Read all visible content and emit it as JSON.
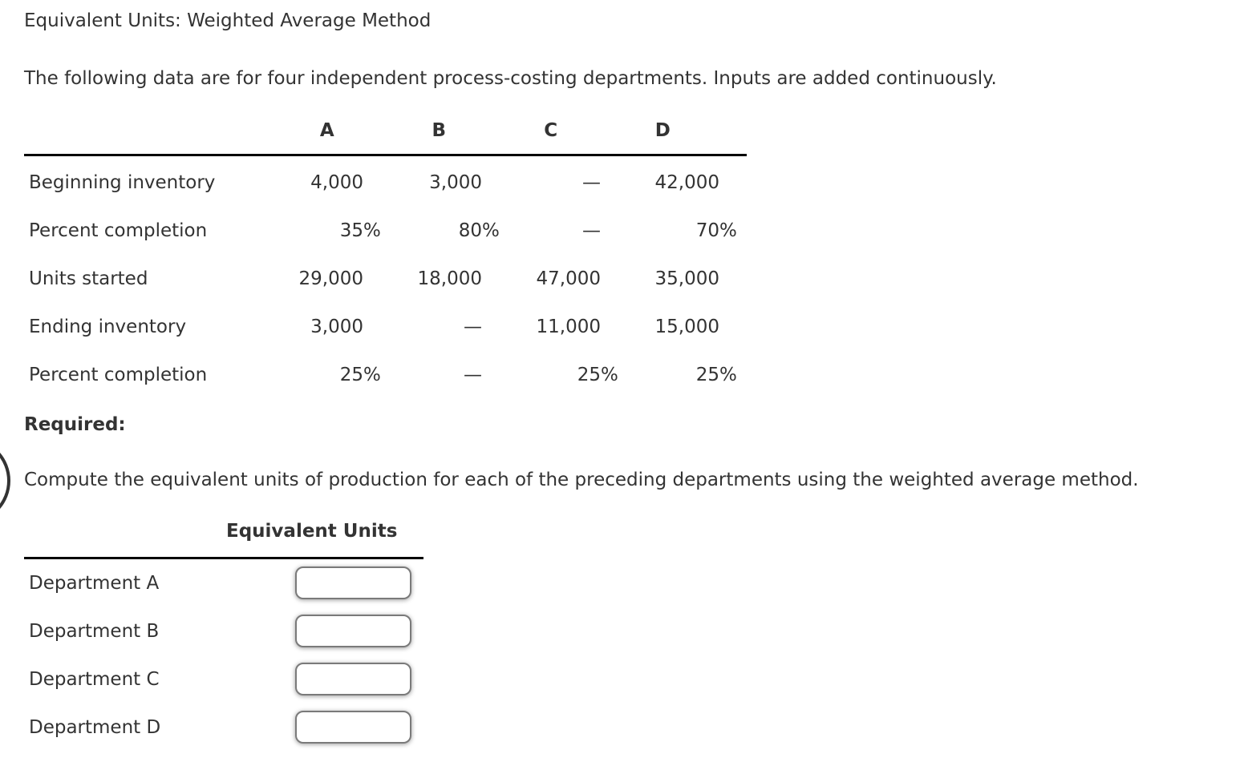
{
  "page": {
    "title": "Equivalent Units: Weighted Average Method",
    "intro": "The following data are for four independent process-costing departments. Inputs are added continuously.",
    "required_label": "Required:",
    "instruction": "Compute the equivalent units of production for each of the preceding departments using the weighted average method."
  },
  "colors": {
    "text": "#333333",
    "rule": "#000000",
    "input_border": "#7a7a7a"
  },
  "data_table": {
    "column_headers": [
      "A",
      "B",
      "C",
      "D"
    ],
    "rows": [
      {
        "label": "Beginning inventory",
        "cells": [
          {
            "v": "4,000",
            "s": ""
          },
          {
            "v": "3,000",
            "s": ""
          },
          {
            "v": "—",
            "s": ""
          },
          {
            "v": "42,000",
            "s": ""
          }
        ]
      },
      {
        "label": "Percent completion",
        "cells": [
          {
            "v": "35",
            "s": "%"
          },
          {
            "v": "80",
            "s": "%"
          },
          {
            "v": "—",
            "s": ""
          },
          {
            "v": "70",
            "s": "%"
          }
        ]
      },
      {
        "label": "Units started",
        "cells": [
          {
            "v": "29,000",
            "s": ""
          },
          {
            "v": "18,000",
            "s": ""
          },
          {
            "v": "47,000",
            "s": ""
          },
          {
            "v": "35,000",
            "s": ""
          }
        ]
      },
      {
        "label": "Ending inventory",
        "cells": [
          {
            "v": "3,000",
            "s": ""
          },
          {
            "v": "—",
            "s": ""
          },
          {
            "v": "11,000",
            "s": ""
          },
          {
            "v": "15,000",
            "s": ""
          }
        ]
      },
      {
        "label": "Percent completion",
        "cells": [
          {
            "v": "25",
            "s": "%"
          },
          {
            "v": "—",
            "s": ""
          },
          {
            "v": "25",
            "s": "%"
          },
          {
            "v": "25",
            "s": "%"
          }
        ]
      }
    ]
  },
  "answer_table": {
    "header": "Equivalent Units",
    "rows": [
      {
        "label": "Department A",
        "value": ""
      },
      {
        "label": "Department B",
        "value": ""
      },
      {
        "label": "Department C",
        "value": ""
      },
      {
        "label": "Department D",
        "value": ""
      }
    ]
  }
}
